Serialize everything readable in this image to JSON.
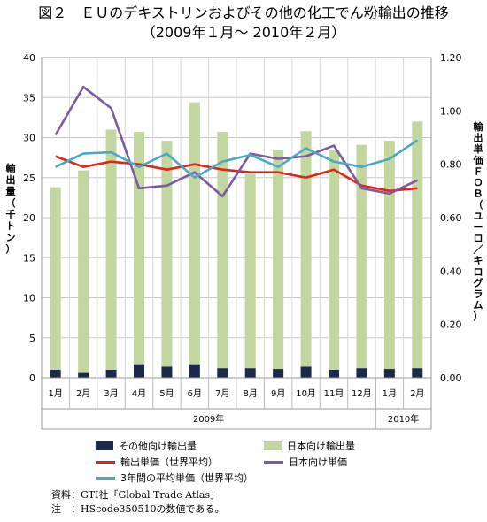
{
  "chart_data": {
    "type": "bar",
    "title": "図２　ＥＵのデキストリンおよびその他の化工でん粉輸出の推移",
    "subtitle": "（2009年１月～ 2010年２月）",
    "categories": [
      "1月",
      "2月",
      "3月",
      "4月",
      "5月",
      "6月",
      "7月",
      "8月",
      "9月",
      "10月",
      "11月",
      "12月",
      "1月",
      "2月"
    ],
    "year_groups": [
      {
        "label": "2009年",
        "count": 12
      },
      {
        "label": "2010年",
        "count": 2
      }
    ],
    "ylabel_left": "輸出量（千トン）",
    "ylabel_right": "輸出単価ＦＯＢ（ユーロ／キログラム）",
    "ylim_left": [
      0,
      40
    ],
    "yticks_left": [
      "0",
      "5",
      "10",
      "15",
      "20",
      "25",
      "30",
      "35",
      "40"
    ],
    "ylim_right": [
      0,
      1.2
    ],
    "yticks_right": [
      "0.00",
      "0.20",
      "0.40",
      "0.60",
      "0.80",
      "1.00",
      "1.20"
    ],
    "stacked_bars": [
      {
        "name": "その他向け輸出量",
        "color": "#1b2a4a",
        "values": [
          1.0,
          0.6,
          1.0,
          1.7,
          1.4,
          1.7,
          1.2,
          1.2,
          1.1,
          1.4,
          1.0,
          1.2,
          1.1,
          1.2
        ]
      },
      {
        "name": "日本向け輸出量",
        "color": "#c2d6a0",
        "values": [
          22.8,
          25.3,
          30.0,
          29.0,
          28.2,
          32.7,
          29.5,
          24.3,
          27.3,
          29.4,
          27.4,
          27.9,
          28.5,
          30.8
        ]
      }
    ],
    "line_series": [
      {
        "name": "輸出単価（世界平均）",
        "color": "#e02418",
        "axis": "right",
        "values": [
          0.83,
          0.79,
          0.81,
          0.8,
          0.78,
          0.8,
          0.78,
          0.77,
          0.77,
          0.75,
          0.78,
          0.72,
          0.7,
          0.71
        ]
      },
      {
        "name": "日本向け単価",
        "color": "#7e5aa2",
        "axis": "right",
        "values": [
          0.91,
          1.09,
          1.01,
          0.71,
          0.72,
          0.77,
          0.68,
          0.84,
          0.82,
          0.83,
          0.87,
          0.71,
          0.69,
          0.74
        ]
      },
      {
        "name": "3年間の平均単価（世界平均）",
        "color": "#4aa9c6",
        "axis": "right",
        "values": [
          0.79,
          0.84,
          0.845,
          0.79,
          0.84,
          0.75,
          0.81,
          0.835,
          0.79,
          0.86,
          0.81,
          0.79,
          0.82,
          0.89
        ]
      }
    ],
    "legend": {
      "position": "bottom",
      "columns": 2
    },
    "grid": true
  },
  "notes": {
    "source": "資料：GTI社「Global Trade Atlas」",
    "note": "注　：HScode350510の数値である。"
  }
}
